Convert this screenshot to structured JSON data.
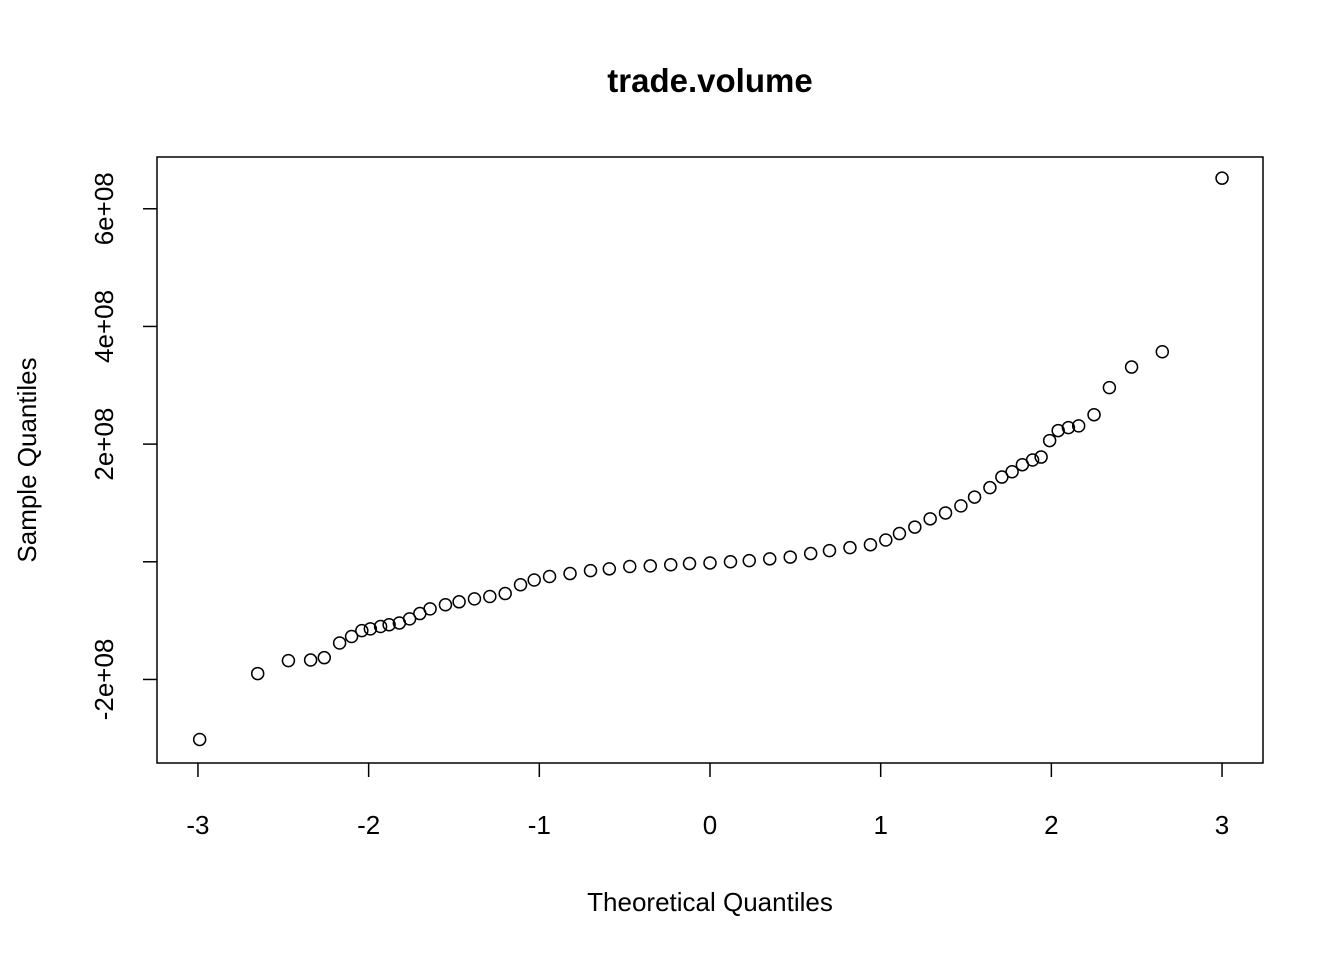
{
  "chart_data": {
    "type": "scatter",
    "title": "trade.volume",
    "x_label": "Theoretical Quantiles",
    "y_label": "Sample Quantiles",
    "xlim": [
      -3.24,
      3.24
    ],
    "ylim": [
      -342000000,
      688000000
    ],
    "xticks": [
      -3,
      -2,
      -1,
      0,
      1,
      2,
      3
    ],
    "yticks": [
      {
        "value": -200000000,
        "label": "-2e+08"
      },
      {
        "value": 0,
        "label": null
      },
      {
        "value": 200000000,
        "label": "2e+08"
      },
      {
        "value": 400000000,
        "label": "4e+08"
      },
      {
        "value": 600000000,
        "label": "6e+08"
      }
    ],
    "color": "#000000",
    "x": [
      -2.99,
      -2.65,
      -2.47,
      -2.34,
      -2.26,
      -2.17,
      -2.1,
      -2.04,
      -1.99,
      -1.93,
      -1.88,
      -1.82,
      -1.76,
      -1.7,
      -1.64,
      -1.55,
      -1.47,
      -1.38,
      -1.29,
      -1.2,
      -1.11,
      -1.03,
      -0.94,
      -0.82,
      -0.7,
      -0.59,
      -0.47,
      -0.35,
      -0.23,
      -0.12,
      0.0,
      0.12,
      0.23,
      0.35,
      0.47,
      0.59,
      0.7,
      0.82,
      0.94,
      1.03,
      1.11,
      1.2,
      1.29,
      1.38,
      1.47,
      1.55,
      1.64,
      1.71,
      1.77,
      1.83,
      1.89,
      1.94,
      1.99,
      2.04,
      2.1,
      2.16,
      2.25,
      2.34,
      2.47,
      2.65,
      3.0
    ],
    "values": [
      -302000000,
      -190000000,
      -168000000,
      -167000000,
      -163000000,
      -138000000,
      -127000000,
      -117000000,
      -114000000,
      -110000000,
      -107000000,
      -104000000,
      -97000000,
      -88000000,
      -80000000,
      -73000000,
      -68000000,
      -63000000,
      -59000000,
      -54000000,
      -39000000,
      -31000000,
      -25000000,
      -20000000,
      -15000000,
      -12000000,
      -8000000,
      -7000000,
      -5000000,
      -3000000,
      -2000000,
      0,
      2000000,
      5000000,
      8000000,
      14000000,
      19000000,
      24000000,
      29000000,
      37000000,
      48000000,
      59000000,
      73000000,
      83000000,
      95000000,
      110000000,
      126000000,
      144000000,
      153000000,
      165000000,
      173000000,
      178000000,
      206000000,
      223000000,
      228000000,
      231000000,
      250000000,
      296000000,
      331000000,
      357000000,
      652000000
    ]
  }
}
